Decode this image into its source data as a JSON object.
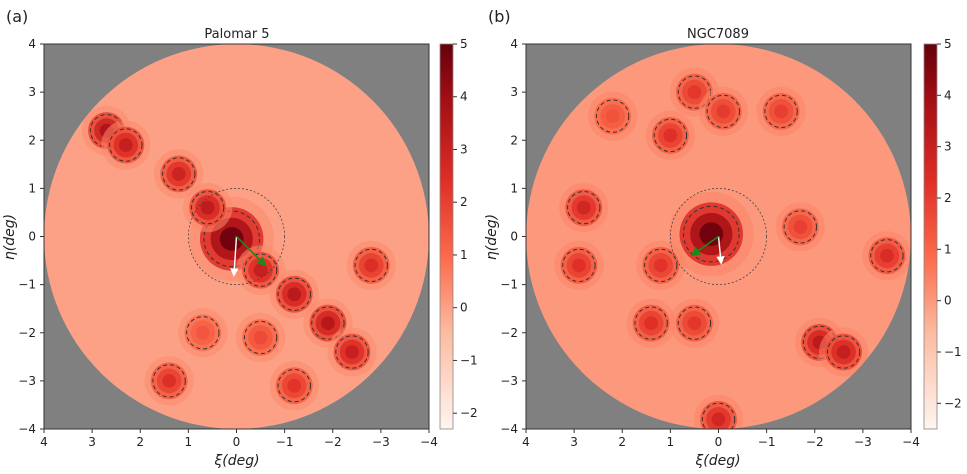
{
  "figure": {
    "panels": [
      {
        "letter": "(a)",
        "title": "Palomar 5",
        "xlabel": "ξ(deg)",
        "ylabel": "η(deg)"
      },
      {
        "letter": "(b)",
        "title": "NGC7089",
        "xlabel": "ξ(deg)",
        "ylabel": "η(deg)"
      }
    ]
  },
  "colors": {
    "outside_mask": "#808080",
    "colormap_low": "#fff5f0",
    "colormap_mid": "#fb6a4a",
    "colormap_high": "#67000d",
    "contour": "#333333",
    "proper_motion_arrow": "#ffffff",
    "reflex_arrow": "#1a8a1a"
  },
  "chart_data": [
    {
      "type": "heatmap",
      "title": "Palomar 5",
      "xlabel": "ξ(deg)",
      "ylabel": "η(deg)",
      "xlim": [
        4,
        -4
      ],
      "ylim": [
        -4,
        4
      ],
      "xticks": [
        "4",
        "3",
        "2",
        "1",
        "0",
        "−1",
        "−2",
        "−3",
        "−4"
      ],
      "yticks": [
        "4",
        "3",
        "2",
        "1",
        "0",
        "−1",
        "−2",
        "−3",
        "−4"
      ],
      "footprint_radius_deg": 4,
      "colorbar": {
        "range": [
          -2.3,
          5
        ],
        "ticks": [
          "5",
          "4",
          "3",
          "2",
          "1",
          "0",
          "−1",
          "−2"
        ]
      },
      "cluster_center": {
        "x": 0,
        "y": 0,
        "tidal_circle_radius_deg": 1
      },
      "overdensities": [
        {
          "x": 0.1,
          "y": -0.05,
          "value": 5
        },
        {
          "x": 2.7,
          "y": 2.2,
          "value": 3.8
        },
        {
          "x": 2.3,
          "y": 1.9,
          "value": 3.2
        },
        {
          "x": 1.2,
          "y": 1.3,
          "value": 3.0
        },
        {
          "x": 0.6,
          "y": 0.6,
          "value": 3.4
        },
        {
          "x": -0.5,
          "y": -0.7,
          "value": 3.2
        },
        {
          "x": -1.2,
          "y": -1.2,
          "value": 3.5
        },
        {
          "x": -1.9,
          "y": -1.8,
          "value": 3.6
        },
        {
          "x": -2.4,
          "y": -2.4,
          "value": 3.2
        },
        {
          "x": -2.8,
          "y": -0.6,
          "value": 2.6
        },
        {
          "x": 1.4,
          "y": -3.0,
          "value": 2.5
        },
        {
          "x": -1.2,
          "y": -3.1,
          "value": 2.4
        },
        {
          "x": -0.5,
          "y": -2.1,
          "value": 1.8
        },
        {
          "x": 0.7,
          "y": -2.0,
          "value": 1.5
        }
      ],
      "proper_motion_arrow": {
        "dx": 0.05,
        "dy": -0.75
      },
      "reflex_arrow": {
        "dx": -0.55,
        "dy": -0.55
      }
    },
    {
      "type": "heatmap",
      "title": "NGC7089",
      "xlabel": "ξ(deg)",
      "ylabel": "η(deg)",
      "xlim": [
        4,
        -4
      ],
      "ylim": [
        -4,
        4
      ],
      "xticks": [
        "4",
        "3",
        "2",
        "1",
        "0",
        "−1",
        "−2",
        "−3",
        "−4"
      ],
      "yticks": [
        "4",
        "3",
        "2",
        "1",
        "0",
        "−1",
        "−2",
        "−3",
        "−4"
      ],
      "footprint_radius_deg": 4,
      "colorbar": {
        "range": [
          -2.5,
          5
        ],
        "ticks": [
          "5",
          "4",
          "3",
          "2",
          "1",
          "0",
          "−1",
          "−2"
        ]
      },
      "cluster_center": {
        "x": 0,
        "y": 0,
        "tidal_circle_radius_deg": 1
      },
      "overdensities": [
        {
          "x": 0.15,
          "y": 0.05,
          "value": 5
        },
        {
          "x": 2.8,
          "y": 0.6,
          "value": 2.8
        },
        {
          "x": 2.9,
          "y": -0.6,
          "value": 2.4
        },
        {
          "x": 1.0,
          "y": 2.1,
          "value": 2.4
        },
        {
          "x": 0.5,
          "y": 3.0,
          "value": 2.2
        },
        {
          "x": -0.1,
          "y": 2.6,
          "value": 2.1
        },
        {
          "x": -1.3,
          "y": 2.6,
          "value": 2.0
        },
        {
          "x": 1.2,
          "y": -0.6,
          "value": 2.3
        },
        {
          "x": -1.7,
          "y": 0.2,
          "value": 2.0
        },
        {
          "x": -3.5,
          "y": -0.4,
          "value": 2.6
        },
        {
          "x": 1.4,
          "y": -1.8,
          "value": 2.4
        },
        {
          "x": 0.5,
          "y": -1.8,
          "value": 2.2
        },
        {
          "x": -2.1,
          "y": -2.2,
          "value": 3.4
        },
        {
          "x": -2.6,
          "y": -2.4,
          "value": 3.2
        },
        {
          "x": 0.0,
          "y": -3.8,
          "value": 2.8
        },
        {
          "x": 2.2,
          "y": 2.5,
          "value": 1.5
        }
      ],
      "proper_motion_arrow": {
        "dx": -0.05,
        "dy": -0.5
      },
      "reflex_arrow": {
        "dx": 0.5,
        "dy": -0.35
      }
    }
  ]
}
